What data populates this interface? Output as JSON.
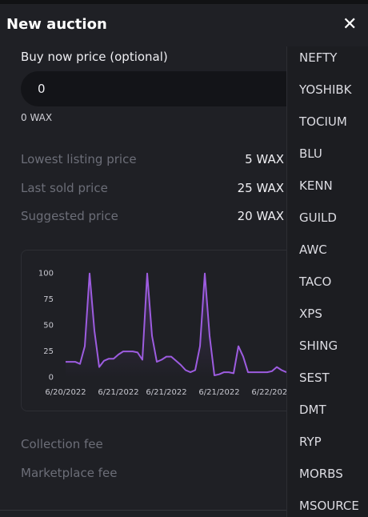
{
  "header": {
    "title": "New auction",
    "close": "✕"
  },
  "form": {
    "buy_now_label": "Buy now price (optional)",
    "input_value": "0",
    "conversion": "0 WAX"
  },
  "prices": [
    {
      "label": "Lowest listing price",
      "value": "5 WAX"
    },
    {
      "label": "Last sold price",
      "value": "25 WAX"
    },
    {
      "label": "Suggested price",
      "value": "20 WAX"
    }
  ],
  "price_chart": {
    "type": "line",
    "color": "#9d5ce0",
    "categories": [
      "6/20/2022",
      null,
      null,
      null,
      null,
      null,
      null,
      null,
      null,
      null,
      null,
      "6/21/2022",
      null,
      null,
      null,
      null,
      null,
      null,
      null,
      null,
      null,
      "6/21/2022",
      null,
      null,
      null,
      null,
      null,
      null,
      null,
      null,
      null,
      null,
      "6/21/2022",
      null,
      null,
      null,
      null,
      null,
      null,
      null,
      null,
      null,
      null,
      "6/22/2022",
      null,
      null,
      null
    ],
    "values": [
      15,
      15,
      15,
      13,
      30,
      100,
      45,
      10,
      16,
      18,
      18,
      22,
      25,
      25,
      25,
      24,
      17,
      100,
      40,
      15,
      17,
      20,
      20,
      16,
      12,
      7,
      5,
      7,
      30,
      100,
      40,
      2,
      3,
      5,
      5,
      4,
      30,
      20,
      5,
      5,
      5,
      5,
      5,
      6,
      10,
      7,
      5
    ],
    "ylim": [
      -8,
      109
    ],
    "yticks": [
      0,
      25,
      50,
      75,
      100
    ]
  },
  "fees": [
    "Collection fee",
    "Marketplace fee"
  ],
  "dropdown": [
    "NEFTY",
    "YOSHIBK",
    "TOCIUM",
    "BLU",
    "KENN",
    "GUILD",
    "AWC",
    "TACO",
    "XPS",
    "SHING",
    "SEST",
    "DMT",
    "RYP",
    "MORBS",
    "MSOURCE"
  ]
}
